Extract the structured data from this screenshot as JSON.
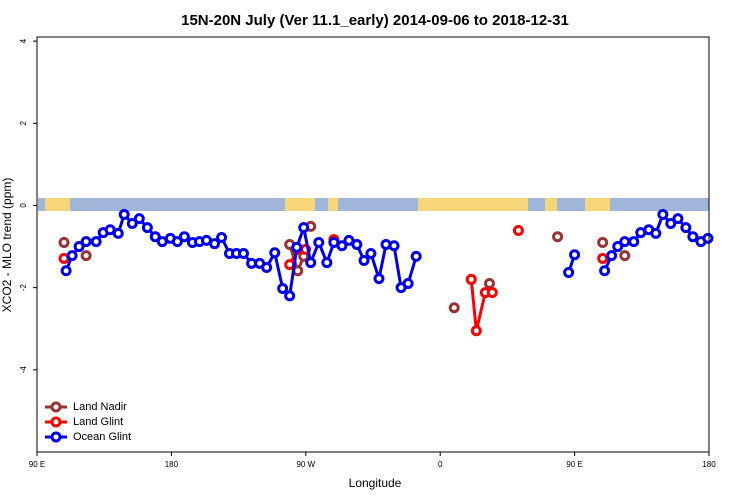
{
  "chart_data": {
    "type": "line",
    "title": "15N-20N July (Ver 11.1_early)   2014-09-06 to 2018-12-31",
    "x_label": "Longitude",
    "y_label": "XCO2 - MLO trend (ppm)",
    "xlim": [
      90,
      540
    ],
    "xticks": [
      {
        "value": 90,
        "label": "90 E"
      },
      180,
      {
        "value": 270,
        "label": "90 W"
      },
      {
        "value": 360,
        "label": "0"
      },
      {
        "value": 450,
        "label": "90 E"
      },
      {
        "value": 540,
        "label": "180"
      }
    ],
    "ylim": [
      -6,
      4.1
    ],
    "yticks": [
      -4,
      -2,
      0,
      2,
      4
    ],
    "legend": "bottom-left",
    "series": [
      {
        "name": "Land Nadir",
        "color": "#993333",
        "x": [
          108.1,
          115,
          122.9,
          200,
          259.2,
          264.6,
          268.6,
          270.5,
          273.3,
          320,
          369.4,
          380,
          393.0,
          410,
          438.6,
          450,
          468.8,
          475,
          483.6
        ],
        "values": [
          -0.9,
          null,
          -1.22,
          null,
          -0.95,
          -1.59,
          -1.24,
          null,
          -0.51,
          null,
          -2.49,
          null,
          -1.9,
          null,
          -0.76,
          null,
          -0.9,
          null,
          -1.22
        ]
      },
      {
        "name": "Land Glint",
        "color": "#ff0000",
        "x": [
          108.1,
          200,
          259.2,
          264.6,
          269.9,
          280,
          288.8,
          330,
          380.8,
          384.2,
          390.2,
          394.9,
          400,
          412.4,
          440,
          468.8
        ],
        "values": [
          -1.29,
          null,
          -1.44,
          -1.07,
          -1.07,
          null,
          -0.83,
          null,
          -1.8,
          -3.05,
          -2.12,
          -2.12,
          null,
          -0.61,
          null,
          -1.29
        ]
      },
      {
        "name": "Ocean Glint",
        "color": "#0000ee",
        "x": [
          109.5,
          113.5,
          118.2,
          122.9,
          129.6,
          134.3,
          139.0,
          144.4,
          148.4,
          153.8,
          158.5,
          163.9,
          169.2,
          173.9,
          179.3,
          184.0,
          188.7,
          194.1,
          198.8,
          203.5,
          208.9,
          213.6,
          218.9,
          223.6,
          228.3,
          233.7,
          239.1,
          243.8,
          249.2,
          254.5,
          259.2,
          264.0,
          268.6,
          273.3,
          278.7,
          284.1,
          288.8,
          294.2,
          298.9,
          304.2,
          309.0,
          313.6,
          319.0,
          323.7,
          329.1,
          333.8,
          338.5,
          343.9,
          400,
          446.0,
          450.0,
          460,
          470.1,
          474.8,
          478.9,
          483.6,
          489.6,
          494.3,
          499.7,
          504.4,
          509.1,
          514.4,
          519.2,
          524.5,
          529.2,
          534.6,
          539.3
        ],
        "values": [
          -1.59,
          -1.22,
          -1.0,
          -0.88,
          -0.88,
          -0.66,
          -0.59,
          -0.68,
          -0.22,
          -0.44,
          -0.32,
          -0.54,
          -0.76,
          -0.88,
          -0.8,
          -0.88,
          -0.76,
          -0.9,
          -0.88,
          -0.85,
          -0.93,
          -0.78,
          -1.17,
          -1.17,
          -1.17,
          -1.41,
          -1.41,
          -1.51,
          -1.15,
          -2.02,
          -2.2,
          -1.02,
          -0.54,
          -1.39,
          -0.9,
          -1.39,
          -0.9,
          -0.98,
          -0.85,
          -0.95,
          -1.34,
          -1.17,
          -1.78,
          -0.95,
          -0.98,
          -2.0,
          -1.9,
          -1.24,
          null,
          -1.63,
          -1.2,
          null,
          -1.59,
          -1.22,
          -1.0,
          -0.88,
          -0.88,
          -0.66,
          -0.59,
          -0.68,
          -0.22,
          -0.44,
          -0.32,
          -0.54,
          -0.76,
          -0.88,
          -0.8
        ]
      }
    ]
  }
}
